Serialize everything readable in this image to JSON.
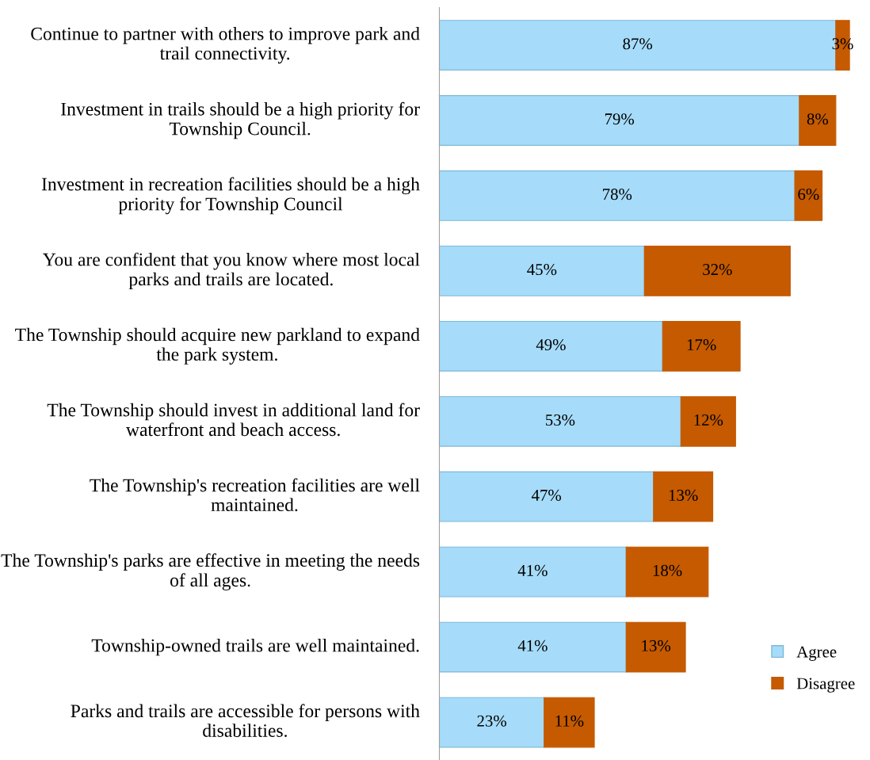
{
  "chart_data": {
    "type": "bar",
    "orientation": "horizontal",
    "stacked": true,
    "legend": "bottom right",
    "grid": false,
    "categories": [
      "Continue to partner with others to improve park and trail connectivity.",
      "Investment in trails should be a high priority for Township Council.",
      "Investment in recreation facilities should be a high priority for Township Council",
      "You are confident that you know where most local parks and trails are located.",
      "The Township should acquire new parkland to expand the park system.",
      "The Township should invest in additional land for waterfront and beach access.",
      "The Township's recreation facilities are well maintained.",
      "The Township's parks are effective in meeting the needs of all ages.",
      "Township-owned trails are well maintained.",
      "Parks and trails are accessible for persons with disabilities."
    ],
    "series": [
      {
        "name": "Agree",
        "color": "#a6dcfa",
        "values": [
          87,
          79,
          78,
          45,
          49,
          53,
          47,
          41,
          41,
          23
        ],
        "value_labels": [
          "87%",
          "79%",
          "78%",
          "45%",
          "49%",
          "53%",
          "47%",
          "41%",
          "41%",
          "23%"
        ]
      },
      {
        "name": "Disagree",
        "color": "#c55a00",
        "values": [
          3,
          8,
          6,
          32,
          17,
          12,
          13,
          18,
          13,
          11
        ],
        "value_labels": [
          "3%",
          "8%",
          "6%",
          "32%",
          "17%",
          "12%",
          "13%",
          "18%",
          "13%",
          "11%"
        ]
      }
    ]
  }
}
